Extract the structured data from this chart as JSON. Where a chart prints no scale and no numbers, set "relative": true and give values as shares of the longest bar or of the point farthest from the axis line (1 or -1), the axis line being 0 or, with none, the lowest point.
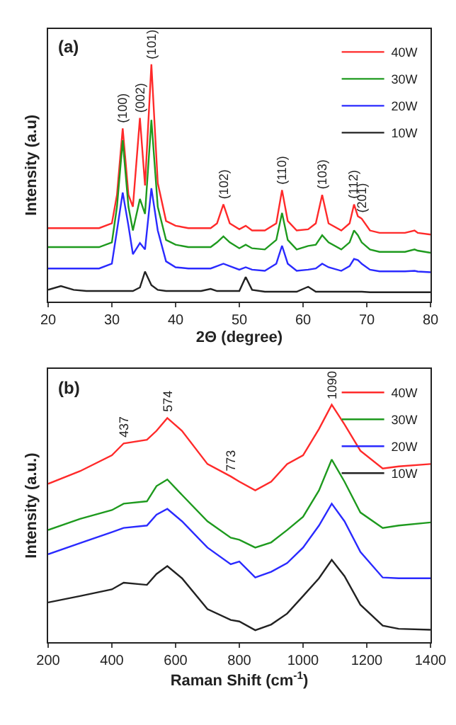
{
  "chart_data": [
    {
      "type": "line",
      "title": "(a)",
      "xlabel": "2Θ (degree)",
      "ylabel": "Intensity (a.u)",
      "relative": true,
      "legend": "top right",
      "tick_labels": "x",
      "x": [
        20,
        22,
        24,
        26,
        28,
        30,
        30.8,
        31.7,
        32.6,
        33.3,
        34.4,
        35.2,
        36.2,
        37.2,
        38.5,
        40,
        42,
        44,
        45.5,
        46.5,
        47.5,
        48.5,
        50,
        51,
        52,
        54,
        55.8,
        56.7,
        57.6,
        59,
        60.8,
        62,
        63,
        64,
        66,
        67.3,
        68,
        68.6,
        69.2,
        70.5,
        72,
        74,
        76,
        77.5,
        78,
        80
      ],
      "xlim": [
        20,
        80
      ],
      "xticks": [
        20,
        30,
        40,
        50,
        60,
        70,
        80
      ],
      "series": [
        {
          "name": "40W",
          "color": "#ff2a2a",
          "values": [
            0.31,
            0.31,
            0.31,
            0.31,
            0.31,
            0.33,
            0.45,
            0.73,
            0.45,
            0.4,
            0.774,
            0.49,
            1.0,
            0.5,
            0.34,
            0.32,
            0.31,
            0.31,
            0.31,
            0.33,
            0.41,
            0.33,
            0.305,
            0.32,
            0.3,
            0.3,
            0.33,
            0.47,
            0.34,
            0.3,
            0.305,
            0.33,
            0.45,
            0.33,
            0.3,
            0.33,
            0.41,
            0.36,
            0.35,
            0.3,
            0.29,
            0.29,
            0.29,
            0.3,
            0.29,
            0.283
          ]
        },
        {
          "name": "30W",
          "color": "#1e9a1e",
          "values": [
            0.23,
            0.23,
            0.23,
            0.23,
            0.23,
            0.25,
            0.4,
            0.68,
            0.4,
            0.3,
            0.433,
            0.37,
            0.766,
            0.4,
            0.26,
            0.24,
            0.23,
            0.23,
            0.23,
            0.25,
            0.275,
            0.25,
            0.225,
            0.24,
            0.225,
            0.22,
            0.26,
            0.374,
            0.26,
            0.22,
            0.235,
            0.24,
            0.28,
            0.25,
            0.22,
            0.25,
            0.3,
            0.28,
            0.25,
            0.22,
            0.21,
            0.21,
            0.21,
            0.22,
            0.215,
            0.206
          ]
        },
        {
          "name": "20W",
          "color": "#2a2aff",
          "values": [
            0.14,
            0.14,
            0.14,
            0.14,
            0.14,
            0.16,
            0.3,
            0.46,
            0.32,
            0.2,
            0.247,
            0.22,
            0.478,
            0.3,
            0.17,
            0.145,
            0.14,
            0.14,
            0.14,
            0.15,
            0.16,
            0.15,
            0.135,
            0.145,
            0.135,
            0.13,
            0.16,
            0.236,
            0.16,
            0.13,
            0.135,
            0.14,
            0.16,
            0.145,
            0.13,
            0.15,
            0.18,
            0.175,
            0.16,
            0.135,
            0.128,
            0.128,
            0.128,
            0.13,
            0.127,
            0.124
          ]
        },
        {
          "name": "10W",
          "color": "#222222",
          "values": [
            0.05,
            0.066,
            0.05,
            0.045,
            0.045,
            0.045,
            0.045,
            0.045,
            0.045,
            0.045,
            0.06,
            0.127,
            0.07,
            0.05,
            0.045,
            0.045,
            0.045,
            0.045,
            0.054,
            0.045,
            0.045,
            0.045,
            0.045,
            0.104,
            0.05,
            0.042,
            0.042,
            0.042,
            0.042,
            0.042,
            0.063,
            0.042,
            0.042,
            0.042,
            0.042,
            0.042,
            0.042,
            0.042,
            0.042,
            0.04,
            0.04,
            0.04,
            0.04,
            0.04,
            0.04,
            0.04
          ]
        }
      ],
      "annotations": [
        {
          "text": "(100)",
          "x": 31.7,
          "y": 0.73
        },
        {
          "text": "(002)",
          "x": 34.4,
          "y": 0.774
        },
        {
          "text": "(101)",
          "x": 36.2,
          "y": 1.0
        },
        {
          "text": "(102)",
          "x": 47.5,
          "y": 0.41
        },
        {
          "text": "(110)",
          "x": 56.7,
          "y": 0.47
        },
        {
          "text": "(103)",
          "x": 63,
          "y": 0.45
        },
        {
          "text": "(112)",
          "x": 68,
          "y": 0.41
        },
        {
          "text": "(201)",
          "x": 69.2,
          "y": 0.35
        }
      ]
    },
    {
      "type": "line",
      "title": "(b)",
      "xlabel": "Raman Shift (cm$^{-1}$)",
      "ylabel": "Intensity (a.u.)",
      "relative": true,
      "legend": "top right",
      "tick_labels": "x",
      "x": [
        200,
        300,
        400,
        437,
        510,
        540,
        574,
        620,
        700,
        773,
        800,
        850,
        900,
        950,
        1000,
        1050,
        1090,
        1130,
        1180,
        1250,
        1300,
        1400
      ],
      "xlim": [
        200,
        1400
      ],
      "xticks": [
        200,
        400,
        600,
        800,
        1000,
        1200,
        1400
      ],
      "series": [
        {
          "name": "40W",
          "color": "#ff2a2a",
          "values": [
            0.667,
            0.72,
            0.787,
            0.837,
            0.852,
            0.89,
            0.944,
            0.89,
            0.75,
            0.698,
            0.676,
            0.639,
            0.676,
            0.75,
            0.787,
            0.898,
            1.0,
            0.917,
            0.806,
            0.731,
            0.74,
            0.75
          ]
        },
        {
          "name": "30W",
          "color": "#1e9a1e",
          "values": [
            0.472,
            0.519,
            0.556,
            0.583,
            0.593,
            0.657,
            0.685,
            0.62,
            0.509,
            0.44,
            0.431,
            0.398,
            0.42,
            0.472,
            0.528,
            0.639,
            0.769,
            0.676,
            0.546,
            0.481,
            0.491,
            0.504
          ]
        },
        {
          "name": "20W",
          "color": "#2a2aff",
          "values": [
            0.37,
            0.417,
            0.463,
            0.481,
            0.491,
            0.537,
            0.561,
            0.509,
            0.398,
            0.328,
            0.339,
            0.272,
            0.296,
            0.333,
            0.398,
            0.491,
            0.583,
            0.509,
            0.38,
            0.272,
            0.269,
            0.269
          ]
        },
        {
          "name": "10W",
          "color": "#222222",
          "values": [
            0.167,
            0.194,
            0.222,
            0.25,
            0.241,
            0.287,
            0.32,
            0.269,
            0.139,
            0.093,
            0.087,
            0.05,
            0.074,
            0.12,
            0.194,
            0.269,
            0.346,
            0.278,
            0.157,
            0.069,
            0.056,
            0.052
          ]
        }
      ],
      "annotations": [
        {
          "text": "437",
          "x": 437,
          "y": 0.837
        },
        {
          "text": "574",
          "x": 574,
          "y": 0.944
        },
        {
          "text": "773",
          "x": 773,
          "y": 0.698
        },
        {
          "text": "1090",
          "x": 1090,
          "y": 1.0
        }
      ]
    }
  ]
}
